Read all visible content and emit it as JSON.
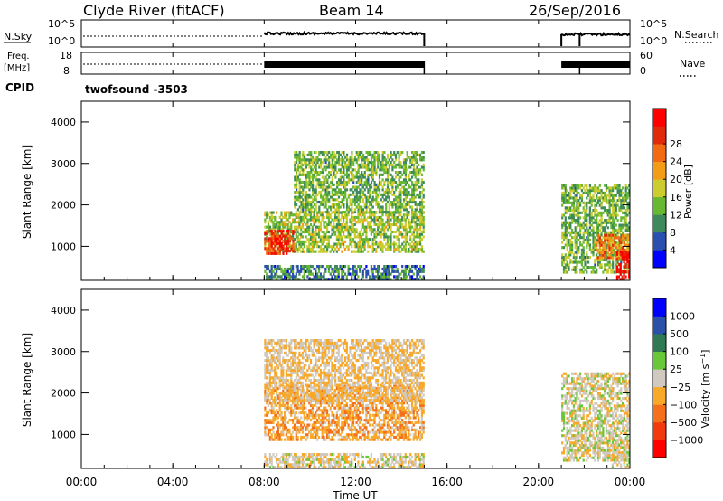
{
  "header": {
    "station": "Clyde River (fitACF)",
    "beam": "Beam 14",
    "date": "26/Sep/2016"
  },
  "top_panels": {
    "nsky": {
      "left_label": "N.Sky",
      "right_label": "N.Search",
      "left_ticks": [
        "10^5",
        "10^0"
      ],
      "right_ticks": [
        "10^5",
        "10^0"
      ],
      "active_segments": [
        [
          8.0,
          15.0
        ],
        [
          21.0,
          24.0
        ]
      ]
    },
    "freq": {
      "left_label_1": "Freq.",
      "left_label_2": "[MHz]",
      "right_label": "Nave",
      "left_ticks": [
        "18",
        "8"
      ],
      "right_ticks": [
        "60",
        "0"
      ]
    },
    "cpid": {
      "label": "CPID",
      "value": "twofsound  -3503"
    }
  },
  "time_axis": {
    "tick_labels": [
      "00:00",
      "04:00",
      "08:00",
      "12:00",
      "16:00",
      "20:00",
      "00:00"
    ],
    "title": "Time UT"
  },
  "colors": {
    "power": [
      "#0000ff",
      "#2a4fb0",
      "#3f8a5a",
      "#68b832",
      "#cdcc2e",
      "#f39c18",
      "#f26b12",
      "#e02a0a",
      "#ff0000"
    ],
    "velocity": [
      "#ff0000",
      "#f23a0a",
      "#f4701a",
      "#f8a92a",
      "#cfc9c0",
      "#68c838",
      "#2f7a52",
      "#2a50a8",
      "#0000ff"
    ]
  },
  "chart_data": [
    {
      "type": "heatmap",
      "name_hint": "power",
      "xlabel": "Time UT",
      "ylabel": "Slant Range [km]",
      "xlim": [
        0,
        24
      ],
      "ylim": [
        180,
        4500
      ],
      "ytick_labels": [
        "1000",
        "2000",
        "3000",
        "4000"
      ],
      "colorbar": {
        "title": "Power [dB]",
        "range": [
          0,
          32
        ],
        "tick_labels": [
          "4",
          "8",
          "12",
          "16",
          "20",
          "24",
          "28"
        ]
      },
      "regions": [
        {
          "t": [
            8.0,
            15.0
          ],
          "range_km": [
            850,
            1850
          ],
          "value": 14
        },
        {
          "t": [
            8.0,
            9.3
          ],
          "range_km": [
            800,
            1400
          ],
          "value": 27
        },
        {
          "t": [
            9.3,
            15.0
          ],
          "range_km": [
            1800,
            3300
          ],
          "value": 12
        },
        {
          "t": [
            8.0,
            15.0
          ],
          "range_km": [
            180,
            550
          ],
          "value": 8
        },
        {
          "t": [
            21.0,
            24.0
          ],
          "range_km": [
            350,
            2500
          ],
          "value": 12
        },
        {
          "t": [
            22.5,
            24.0
          ],
          "range_km": [
            700,
            1300
          ],
          "value": 22
        },
        {
          "t": [
            23.4,
            24.0
          ],
          "range_km": [
            180,
            900
          ],
          "value": 30
        }
      ]
    },
    {
      "type": "heatmap",
      "name_hint": "velocity",
      "xlabel": "Time UT",
      "ylabel": "Slant Range [km]",
      "xlim": [
        0,
        24
      ],
      "ylim": [
        180,
        4500
      ],
      "ytick_labels": [
        "1000",
        "2000",
        "3000",
        "4000"
      ],
      "colorbar": {
        "title": "Velocity [m s^-1]",
        "range": [
          -1200,
          1200
        ],
        "tick_labels": [
          "-1000",
          "-500",
          "-100",
          "-25",
          "25",
          "100",
          "500",
          "1000"
        ]
      },
      "regions": [
        {
          "t": [
            8.0,
            15.0
          ],
          "range_km": [
            850,
            2200
          ],
          "value": -300
        },
        {
          "t": [
            8.0,
            15.0
          ],
          "range_km": [
            1800,
            3300
          ],
          "value": -150
        },
        {
          "t": [
            8.0,
            15.0
          ],
          "range_km": [
            180,
            550
          ],
          "value": -60
        },
        {
          "t": [
            21.0,
            24.0
          ],
          "range_km": [
            350,
            2500
          ],
          "value": -20
        },
        {
          "t": [
            23.2,
            24.0
          ],
          "range_km": [
            180,
            900
          ],
          "value": 0
        }
      ]
    }
  ]
}
